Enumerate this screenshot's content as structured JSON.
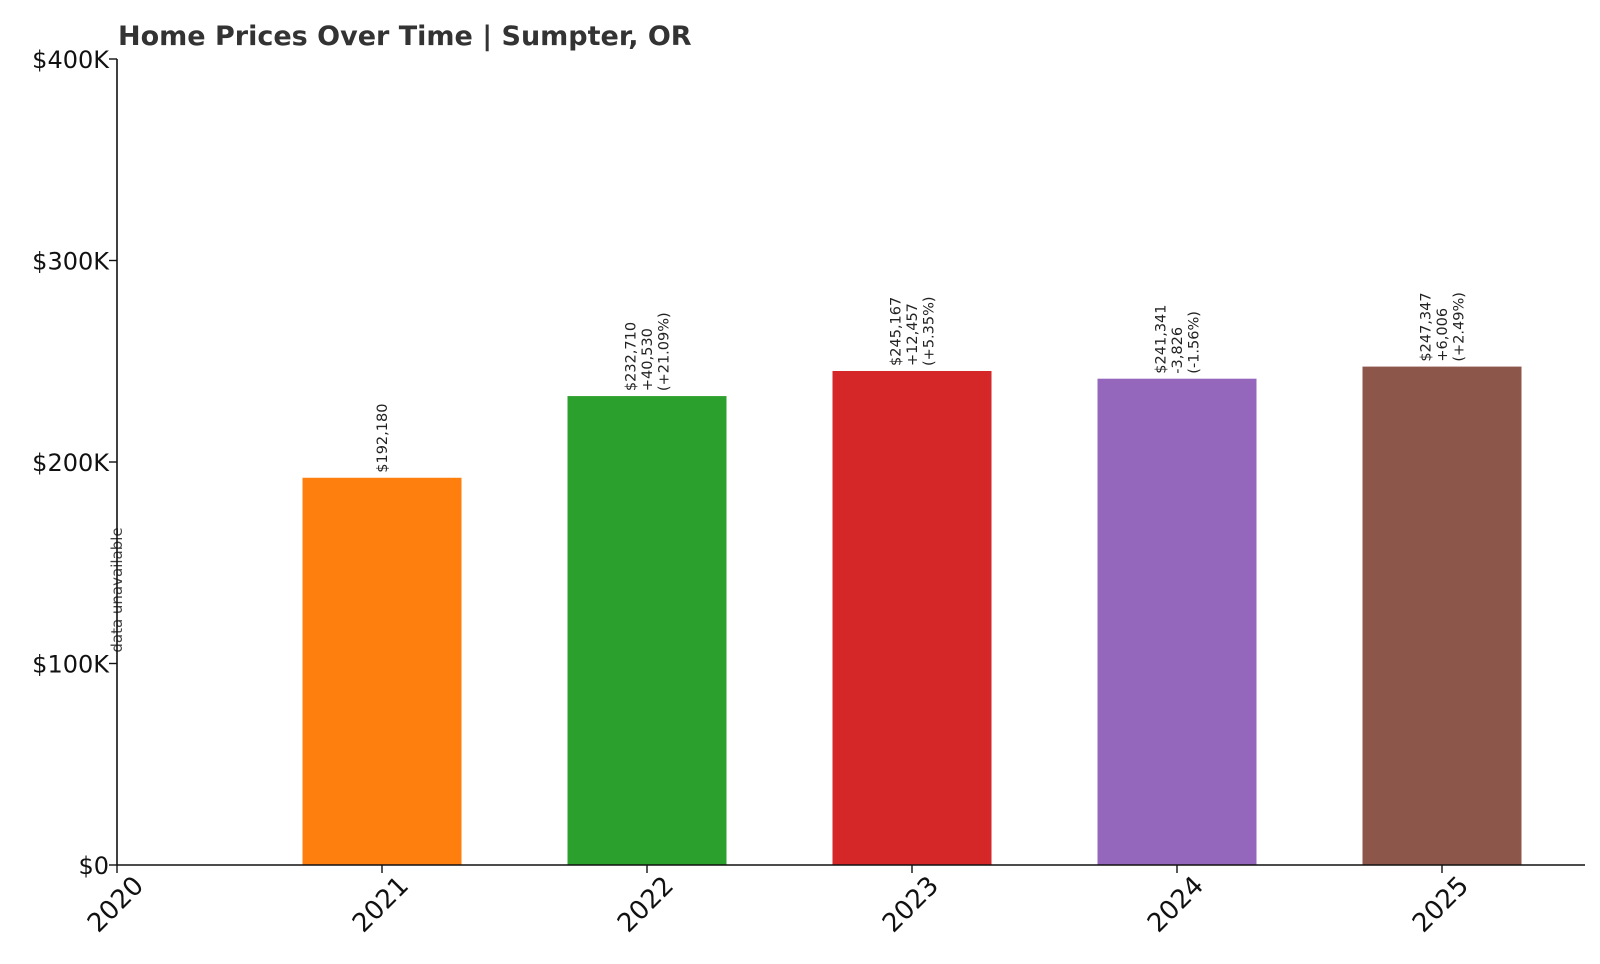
{
  "chart_data": {
    "type": "bar",
    "title": "Home Prices Over Time | Sumpter, OR",
    "xlabel": "",
    "ylabel": "",
    "categories": [
      "2020",
      "2021",
      "2022",
      "2023",
      "2024",
      "2025"
    ],
    "values": [
      null,
      192180,
      232710,
      245167,
      241341,
      247347
    ],
    "colors": [
      "#1f77b4",
      "#ff7f0e",
      "#2ca02c",
      "#d62728",
      "#9467bd",
      "#8c564b"
    ],
    "labels": [
      [
        "data unavailable"
      ],
      [
        "$192,180"
      ],
      [
        "$232,710",
        "+40,530",
        "(+21.09%)"
      ],
      [
        "$245,167",
        "+12,457",
        "(+5.35%)"
      ],
      [
        "$241,341",
        "-3,826",
        "(-1.56%)"
      ],
      [
        "$247,347",
        "+6,006",
        "(+2.49%)"
      ]
    ],
    "ylim": [
      0,
      400000
    ],
    "yticks": [
      0,
      100000,
      200000,
      300000,
      400000
    ],
    "ytick_labels": [
      "$0",
      "$100K",
      "$200K",
      "$300K",
      "$400K"
    ],
    "grid": false,
    "legend": "none"
  }
}
